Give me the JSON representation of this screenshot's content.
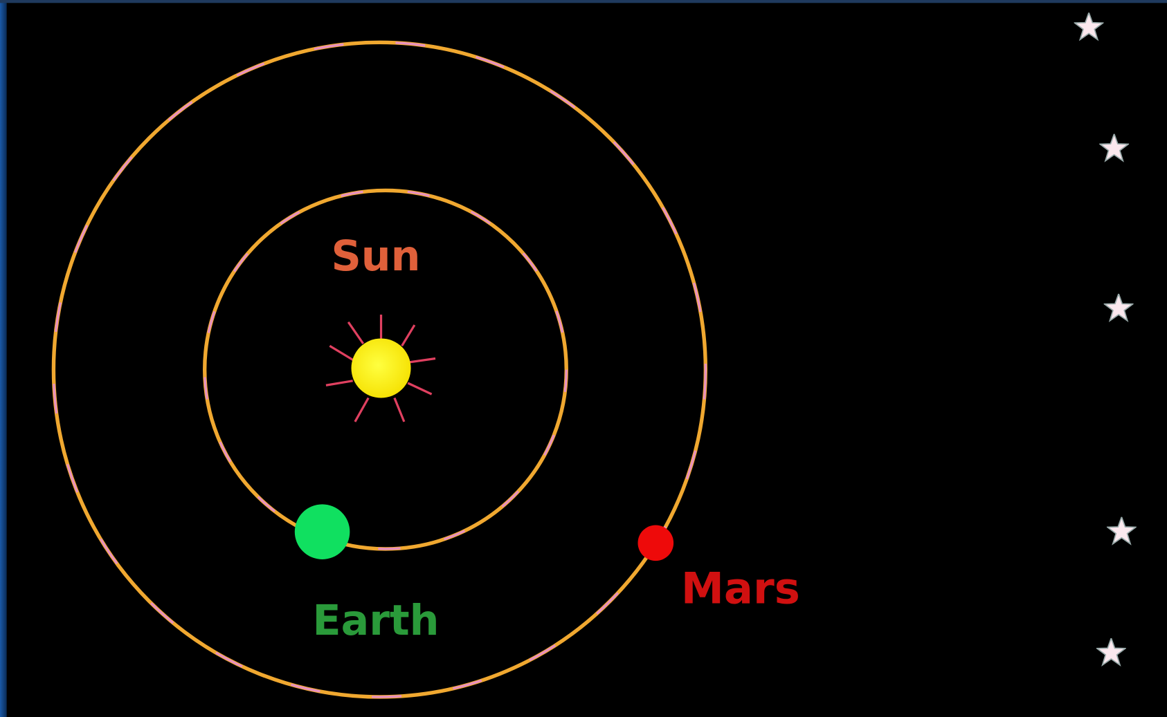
{
  "labels": {
    "sun": "Sun",
    "earth": "Earth",
    "mars": "Mars"
  }
}
